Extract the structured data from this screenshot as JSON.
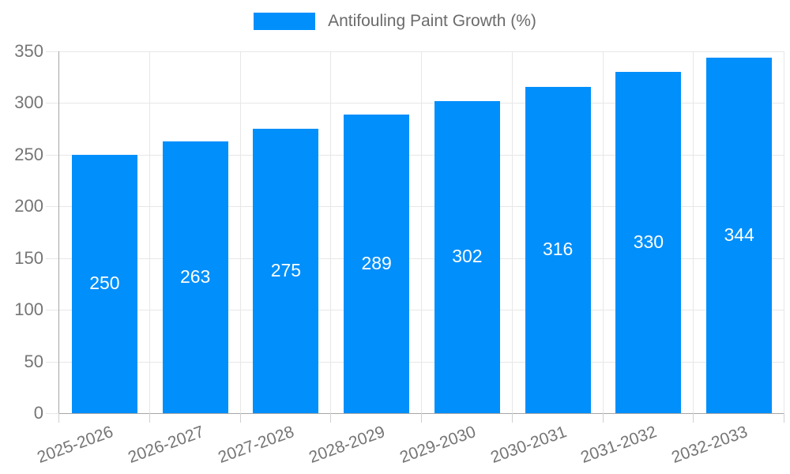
{
  "legend": {
    "label": "Antifouling Paint Growth (%)"
  },
  "chart_data": {
    "type": "bar",
    "title": "",
    "categories": [
      "2025-2026",
      "2026-2027",
      "2027-2028",
      "2028-2029",
      "2029-2030",
      "2030-2031",
      "2031-2032",
      "2032-2033"
    ],
    "series": [
      {
        "name": "Antifouling Paint Growth (%)",
        "values": [
          250,
          263,
          275,
          289,
          302,
          316,
          330,
          344
        ]
      }
    ],
    "xlabel": "",
    "ylabel": "",
    "ylim": [
      0,
      350
    ],
    "yticks": [
      0,
      50,
      100,
      150,
      200,
      250,
      300,
      350
    ],
    "grid": true,
    "legend_position": "top",
    "bar_value_labels": "inside-center",
    "x_label_rotation_deg": -20
  },
  "colors": {
    "bar": "#008FFB",
    "bar_label": "#FFFFFF",
    "axis_label": "#757575",
    "legend_text": "#6B6B6B",
    "gridline": "#E7E7E7",
    "axis_line": "#A6A6A6",
    "tick": "#D0D0D0",
    "background": "#FFFFFF"
  }
}
